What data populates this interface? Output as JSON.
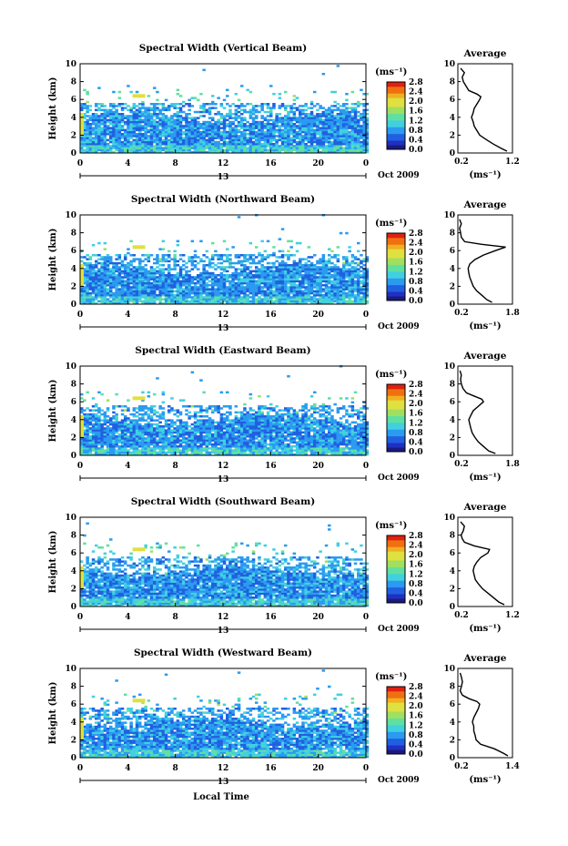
{
  "x_axis_label": "Local Time",
  "x_ticks": [
    "0",
    "4",
    "8",
    "12",
    "16",
    "20",
    "0"
  ],
  "date_marker": "13",
  "date_label": "Oct 2009",
  "y_label": "Height (km)",
  "y_ticks": [
    "0",
    "2",
    "4",
    "6",
    "8",
    "10"
  ],
  "colorbar_unit": "(ms⁻¹)",
  "colorbar_ticks": [
    "0.0",
    "0.4",
    "0.8",
    "1.2",
    "1.6",
    "2.0",
    "2.4",
    "2.8"
  ],
  "avg_title": "Average",
  "avg_unit": "(ms⁻¹)",
  "colors": {
    "colorbar": [
      "#1a1a80",
      "#2030c0",
      "#2060e0",
      "#2a9bf0",
      "#40d0e0",
      "#60e0a0",
      "#a0e060",
      "#e0e040",
      "#f0b020",
      "#f07010",
      "#e02010"
    ],
    "axes": "#000000"
  },
  "chart_data": [
    {
      "type": "heatmap",
      "title": "Spectral Width (Vertical Beam)",
      "x_range": [
        0,
        24
      ],
      "y_range": [
        0,
        10
      ],
      "colorbar_range": [
        0.0,
        2.8
      ],
      "profile": {
        "type": "line",
        "title": "Average",
        "xlim": [
          0.2,
          1.2
        ],
        "xticks": [
          "0.2",
          "1.2"
        ],
        "heights": [
          0.2,
          0.5,
          1.0,
          1.5,
          2.0,
          2.5,
          3.0,
          3.5,
          4.0,
          4.5,
          5.0,
          5.5,
          6.0,
          6.3,
          6.6,
          7.0,
          7.5,
          8.0,
          8.5,
          9.0,
          9.5
        ],
        "values": [
          1.1,
          1.0,
          0.85,
          0.72,
          0.6,
          0.55,
          0.5,
          0.48,
          0.45,
          0.48,
          0.5,
          0.55,
          0.6,
          0.62,
          0.55,
          0.4,
          0.35,
          0.3,
          0.28,
          0.32,
          0.25
        ]
      }
    },
    {
      "type": "heatmap",
      "title": "Spectral Width (Northward Beam)",
      "x_range": [
        0,
        24
      ],
      "y_range": [
        0,
        10
      ],
      "colorbar_range": [
        0.0,
        2.8
      ],
      "profile": {
        "type": "line",
        "title": "Average",
        "xlim": [
          0.2,
          1.8
        ],
        "xticks": [
          "0.2",
          "1.8"
        ],
        "heights": [
          0.2,
          0.5,
          1.0,
          1.5,
          2.0,
          2.5,
          3.0,
          3.5,
          4.0,
          4.5,
          5.0,
          5.5,
          6.0,
          6.4,
          6.7,
          7.0,
          7.5,
          8.0,
          8.5,
          9.0,
          9.5
        ],
        "values": [
          1.2,
          1.05,
          0.9,
          0.75,
          0.65,
          0.6,
          0.55,
          0.52,
          0.5,
          0.55,
          0.7,
          0.95,
          1.3,
          1.6,
          0.9,
          0.4,
          0.3,
          0.28,
          0.25,
          0.3,
          0.25
        ]
      }
    },
    {
      "type": "heatmap",
      "title": "Spectral Width (Eastward Beam)",
      "x_range": [
        0,
        24
      ],
      "y_range": [
        0,
        10
      ],
      "colorbar_range": [
        0.0,
        2.8
      ],
      "profile": {
        "type": "line",
        "title": "Average",
        "xlim": [
          0.2,
          1.8
        ],
        "xticks": [
          "0.2",
          "1.8"
        ],
        "heights": [
          0.2,
          0.5,
          1.0,
          1.5,
          2.0,
          2.5,
          3.0,
          3.5,
          4.0,
          4.5,
          5.0,
          5.5,
          6.0,
          6.3,
          6.6,
          7.0,
          7.5,
          8.0,
          8.5,
          9.0,
          9.5
        ],
        "values": [
          1.3,
          1.1,
          0.95,
          0.8,
          0.7,
          0.62,
          0.58,
          0.55,
          0.52,
          0.58,
          0.65,
          0.8,
          0.95,
          0.9,
          0.7,
          0.45,
          0.35,
          0.3,
          0.28,
          0.3,
          0.26
        ]
      }
    },
    {
      "type": "heatmap",
      "title": "Spectral Width (Southward Beam)",
      "x_range": [
        0,
        24
      ],
      "y_range": [
        0,
        10
      ],
      "colorbar_range": [
        0.0,
        2.8
      ],
      "profile": {
        "type": "line",
        "title": "Average",
        "xlim": [
          0.2,
          1.2
        ],
        "xticks": [
          "0.2",
          "1.2"
        ],
        "heights": [
          0.2,
          0.5,
          1.0,
          1.5,
          2.0,
          2.5,
          3.0,
          3.5,
          4.0,
          4.5,
          5.0,
          5.5,
          6.0,
          6.4,
          6.8,
          7.2,
          7.6,
          8.0,
          8.5,
          9.0,
          9.5
        ],
        "values": [
          1.05,
          0.95,
          0.85,
          0.75,
          0.65,
          0.58,
          0.52,
          0.5,
          0.48,
          0.5,
          0.55,
          0.62,
          0.75,
          0.78,
          0.5,
          0.32,
          0.28,
          0.26,
          0.3,
          0.32,
          0.25
        ]
      }
    },
    {
      "type": "heatmap",
      "title": "Spectral Width (Westward Beam)",
      "x_range": [
        0,
        24
      ],
      "y_range": [
        0,
        10
      ],
      "colorbar_range": [
        0.0,
        2.8
      ],
      "profile": {
        "type": "line",
        "title": "Average",
        "xlim": [
          0.2,
          1.4
        ],
        "xticks": [
          "0.2",
          "1.4"
        ],
        "heights": [
          0.2,
          0.5,
          1.0,
          1.5,
          2.0,
          2.5,
          3.0,
          3.5,
          4.0,
          4.5,
          5.0,
          5.5,
          6.0,
          6.3,
          6.6,
          7.0,
          7.5,
          8.0,
          8.5,
          9.0,
          9.5
        ],
        "values": [
          1.3,
          1.2,
          1.0,
          0.7,
          0.6,
          0.58,
          0.55,
          0.55,
          0.52,
          0.55,
          0.6,
          0.65,
          0.68,
          0.62,
          0.45,
          0.3,
          0.25,
          0.28,
          0.3,
          0.28,
          0.25
        ]
      }
    }
  ]
}
